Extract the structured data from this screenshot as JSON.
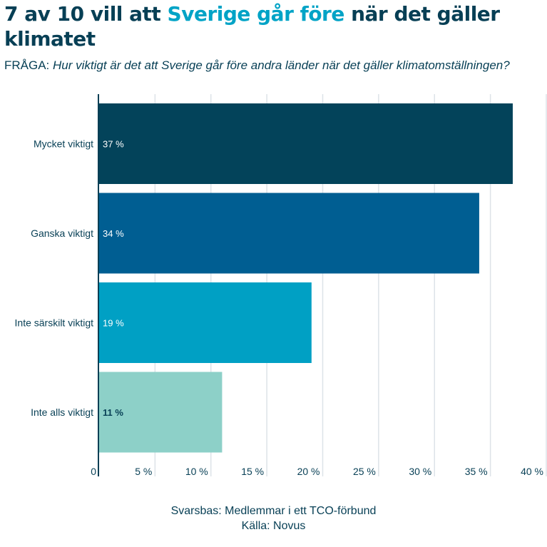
{
  "header": {
    "title_part1": "7 av 10 vill att ",
    "title_highlight": "Sverige går före",
    "title_part2": " när det gäller klimatet",
    "question_prefix": "FRÅGA: ",
    "question_text": "Hur viktigt är det att Sverige går före andra länder när det gäller klimatomställningen?"
  },
  "footer": {
    "base": "Svarsbas: Medlemmar i ett TCO-förbund",
    "source": "Källa: Novus"
  },
  "colors": {
    "title": "#073f55",
    "highlight": "#00a3c6",
    "grid": "#dde3e8"
  },
  "chart_data": {
    "type": "bar",
    "orientation": "horizontal",
    "title": "7 av 10 vill att Sverige går före när det gäller klimatet",
    "categories": [
      "Mycket viktigt",
      "Ganska viktigt",
      "Inte särskilt viktigt",
      "Inte alls viktigt"
    ],
    "values": [
      37,
      34,
      19,
      11
    ],
    "value_labels": [
      "37 %",
      "34 %",
      "19 %",
      "11 %"
    ],
    "bar_colors": [
      "#03435a",
      "#005e92",
      "#00a0c4",
      "#8dd0c8"
    ],
    "label_colors": [
      "#ffffff",
      "#ffffff",
      "#ffffff",
      "#073f55"
    ],
    "xlabel": "",
    "ylabel": "",
    "xlim": [
      0,
      40
    ],
    "ticks": [
      0,
      5,
      10,
      15,
      20,
      25,
      30,
      35,
      40
    ],
    "tick_labels": [
      "0",
      "5 %",
      "10 %",
      "15 %",
      "20 %",
      "25 %",
      "30 %",
      "35 %",
      "40 %"
    ],
    "grid": true,
    "legend": "none"
  }
}
